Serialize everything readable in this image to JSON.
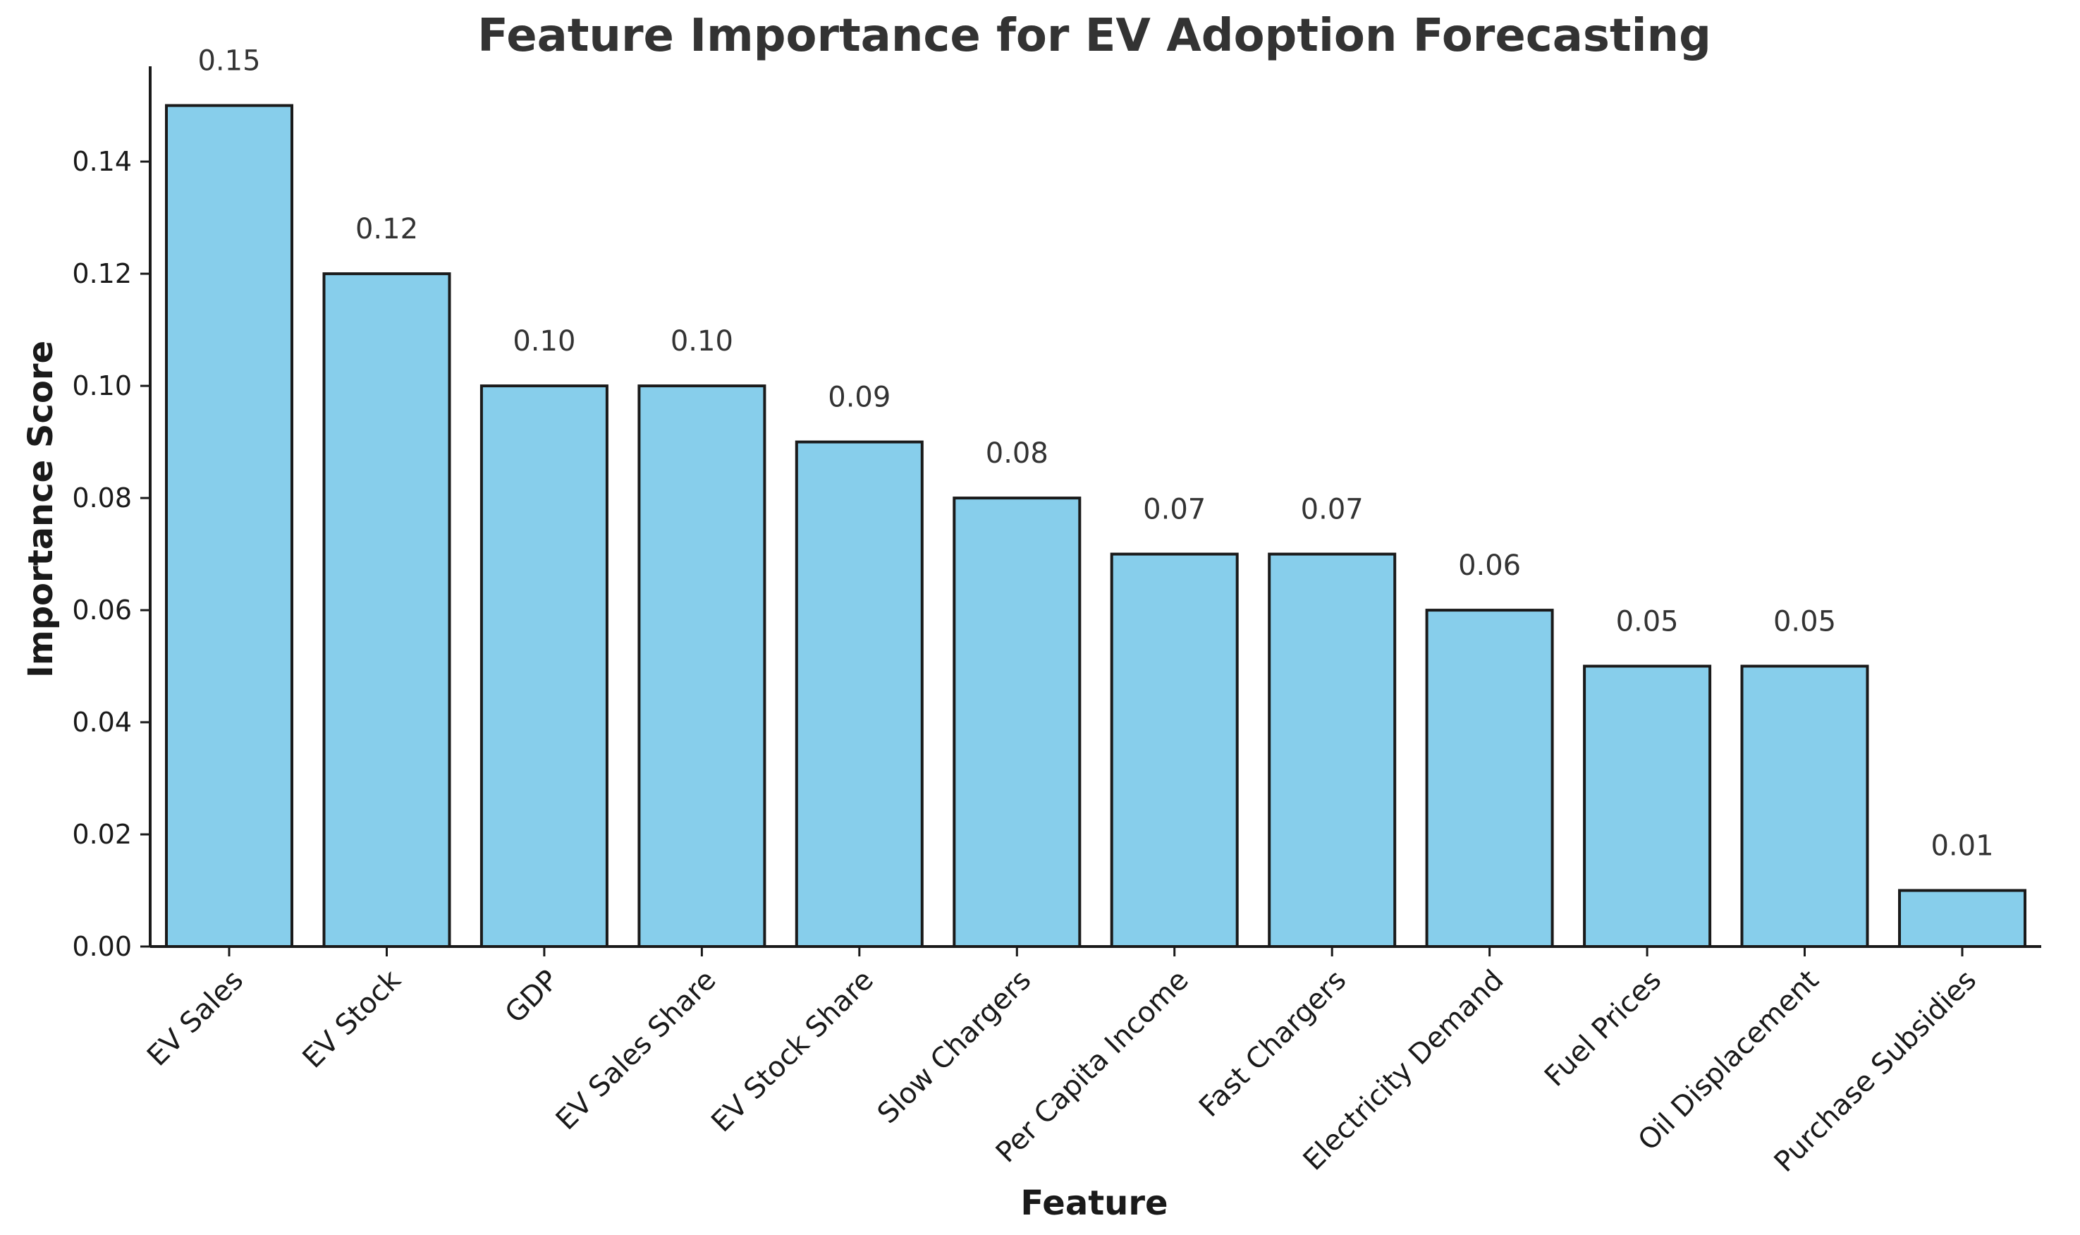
{
  "chart_data": {
    "type": "bar",
    "title": "Feature Importance for EV Adoption Forecasting",
    "xlabel": "Feature",
    "ylabel": "Importance Score",
    "categories": [
      "EV Sales",
      "EV Stock",
      "GDP",
      "EV Sales Share",
      "EV Stock Share",
      "Slow Chargers",
      "Per Capita Income",
      "Fast Chargers",
      "Electricity Demand",
      "Fuel Prices",
      "Oil Displacement",
      "Purchase Subsidies"
    ],
    "values": [
      0.15,
      0.12,
      0.1,
      0.1,
      0.09,
      0.08,
      0.07,
      0.07,
      0.06,
      0.05,
      0.05,
      0.01
    ],
    "value_labels": [
      "0.15",
      "0.12",
      "0.10",
      "0.10",
      "0.09",
      "0.08",
      "0.07",
      "0.07",
      "0.06",
      "0.05",
      "0.05",
      "0.01"
    ],
    "ylim": [
      0,
      0.157
    ],
    "yticks": [
      0.0,
      0.02,
      0.04,
      0.06,
      0.08,
      0.1,
      0.12,
      0.14
    ],
    "ytick_labels": [
      "0.00",
      "0.02",
      "0.04",
      "0.06",
      "0.08",
      "0.10",
      "0.12",
      "0.14"
    ],
    "grid": false,
    "bar_color": "#87CEEB",
    "edge_color": "#1a1a1a",
    "axis_color": "#1a1a1a"
  }
}
